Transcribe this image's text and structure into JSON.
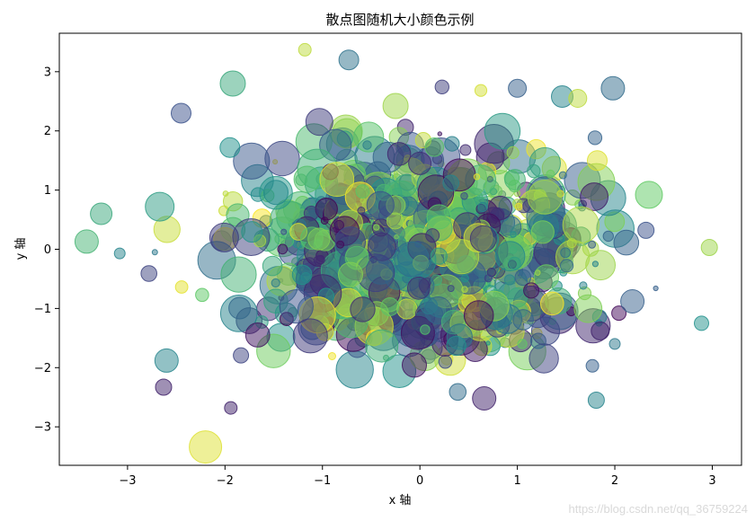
{
  "chart_data": {
    "type": "scatter",
    "title": "散点图随机大小颜色示例",
    "xlabel": "x 轴",
    "ylabel": "y 轴",
    "xlim": [
      -3.7,
      3.3
    ],
    "ylim": [
      -3.65,
      3.65
    ],
    "xticks": [
      -3,
      -2,
      -1,
      0,
      1,
      2,
      3
    ],
    "yticks": [
      -3,
      -2,
      -1,
      0,
      1,
      2,
      3
    ],
    "xtick_labels": [
      "−3",
      "−2",
      "−1",
      "0",
      "1",
      "2",
      "3"
    ],
    "ytick_labels": [
      "−3",
      "−2",
      "−1",
      "0",
      "1",
      "2",
      "3"
    ],
    "grid": false,
    "legend": "none",
    "alpha": 0.5,
    "colormap": "viridis",
    "colormap_stops": [
      "#440154",
      "#3b528b",
      "#21918c",
      "#5ec962",
      "#fde725"
    ],
    "n_points": 1000,
    "random_distribution": "standard normal (x, y), uniform color, uniform size",
    "sample_points": [
      {
        "x": -3.42,
        "y": 0.13,
        "s": 0.55,
        "c": 0.65
      },
      {
        "x": -3.27,
        "y": 0.6,
        "s": 0.5,
        "c": 0.6
      },
      {
        "x": -3.08,
        "y": -0.07,
        "s": 0.2,
        "c": 0.45
      },
      {
        "x": -2.72,
        "y": -0.05,
        "s": 0.05,
        "c": 0.4
      },
      {
        "x": -2.67,
        "y": 0.72,
        "s": 0.7,
        "c": 0.55
      },
      {
        "x": -2.45,
        "y": 2.3,
        "s": 0.45,
        "c": 0.25
      },
      {
        "x": -2.6,
        "y": -1.88,
        "s": 0.55,
        "c": 0.45
      },
      {
        "x": -2.63,
        "y": -2.33,
        "s": 0.35,
        "c": 0.1
      },
      {
        "x": -2.2,
        "y": -3.34,
        "s": 0.8,
        "c": 0.95
      },
      {
        "x": -1.92,
        "y": 2.8,
        "s": 0.6,
        "c": 0.6
      },
      {
        "x": -1.95,
        "y": 1.72,
        "s": 0.45,
        "c": 0.5
      },
      {
        "x": -1.94,
        "y": -2.68,
        "s": 0.25,
        "c": 0.1
      },
      {
        "x": -1.18,
        "y": 3.37,
        "s": 0.25,
        "c": 0.9
      },
      {
        "x": -0.25,
        "y": 2.42,
        "s": 0.6,
        "c": 0.85
      },
      {
        "x": 0.66,
        "y": -2.52,
        "s": 0.55,
        "c": 0.1
      },
      {
        "x": 1.0,
        "y": 2.72,
        "s": 0.4,
        "c": 0.3
      },
      {
        "x": 1.46,
        "y": 2.58,
        "s": 0.5,
        "c": 0.45
      },
      {
        "x": 1.62,
        "y": 2.55,
        "s": 0.4,
        "c": 0.9
      },
      {
        "x": 1.98,
        "y": 2.72,
        "s": 0.55,
        "c": 0.35
      },
      {
        "x": 1.82,
        "y": 1.5,
        "s": 0.45,
        "c": 0.95
      },
      {
        "x": 2.35,
        "y": 0.92,
        "s": 0.65,
        "c": 0.75
      },
      {
        "x": 2.32,
        "y": 0.32,
        "s": 0.35,
        "c": 0.25
      },
      {
        "x": 2.18,
        "y": -0.88,
        "s": 0.55,
        "c": 0.3
      },
      {
        "x": 2.42,
        "y": -0.66,
        "s": 0.03,
        "c": 0.3
      },
      {
        "x": 2.97,
        "y": 0.03,
        "s": 0.35,
        "c": 0.85
      },
      {
        "x": 2.89,
        "y": -1.25,
        "s": 0.3,
        "c": 0.5
      },
      {
        "x": 1.81,
        "y": -2.55,
        "s": 0.35,
        "c": 0.45
      },
      {
        "x": 1.77,
        "y": -1.97,
        "s": 0.25,
        "c": 0.3
      },
      {
        "x": 1.85,
        "y": -1.38,
        "s": 0.4,
        "c": 0.1
      },
      {
        "x": 2.0,
        "y": -1.6,
        "s": 0.2,
        "c": 0.4
      }
    ]
  },
  "watermark": "https://blog.csdn.net/qq_36759224"
}
